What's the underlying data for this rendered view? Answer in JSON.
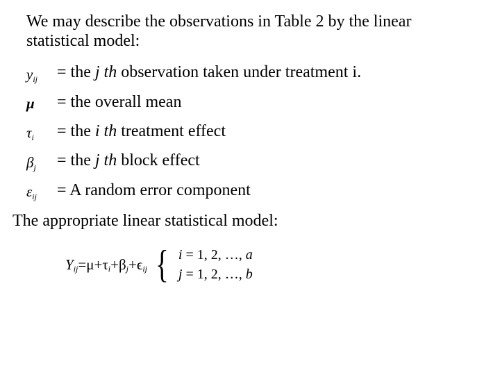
{
  "intro": "We may describe the observations in Table 2 by the linear statistical model:",
  "defs": {
    "yij": {
      "symbol_base": "y",
      "symbol_sub": "ij",
      "eq": "= the ",
      "it1": "j th",
      "rest1": " observation taken under treatment i."
    },
    "mu": {
      "symbol": "μ",
      "text": "= the overall mean"
    },
    "tau": {
      "symbol_base": "τ",
      "symbol_sub": "i",
      "eq": "= the ",
      "it1": "i th",
      "rest1": " treatment effect"
    },
    "beta": {
      "symbol_base": "β",
      "symbol_sub": "j",
      "eq": "= the ",
      "it1": "j th",
      "rest1": " block effect"
    },
    "eps": {
      "symbol_base": "ε",
      "symbol_sub": "ij",
      "text": "= A random error component"
    }
  },
  "closing": "The appropriate linear statistical model:",
  "equation": {
    "Y": "Y",
    "Y_sub": "ij",
    "eq": " = ",
    "mu": "μ",
    "plus": " + ",
    "tau": "τ",
    "tau_sub": "i",
    "beta": "β",
    "beta_sub": "j",
    "eps": "ϵ",
    "eps_sub": "ij",
    "case1_var": "i",
    "case1_rest": " = 1, 2, …, ",
    "case1_end": "a",
    "case2_var": "j",
    "case2_rest": " = 1, 2, …, ",
    "case2_end": "b"
  },
  "colors": {
    "text": "#000000",
    "background": "#ffffff"
  },
  "typography": {
    "body_fontsize_pt": 18,
    "symbol_fontsize_pt": 16,
    "equation_fontsize_pt": 16,
    "font_family": "Times New Roman"
  }
}
